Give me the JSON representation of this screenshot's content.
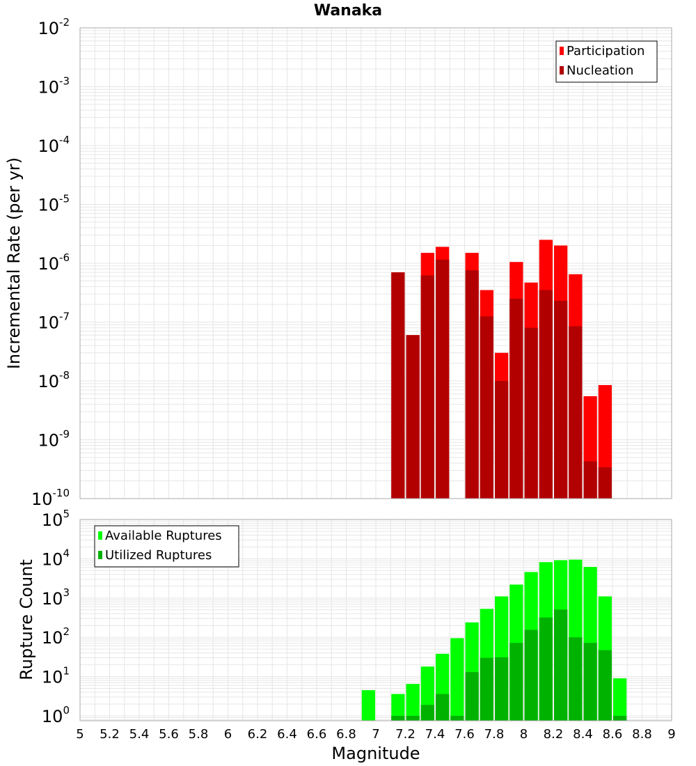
{
  "title": "Wanaka",
  "colors": {
    "participation": "#ff0000",
    "nucleation": "#b20000",
    "available": "#00ff00",
    "utilized": "#00b200",
    "grid": "#e6e6e6",
    "axis": "#aaaaaa"
  },
  "chart_data": [
    {
      "type": "bar",
      "panel": "top",
      "title": "Wanaka",
      "xlabel": "",
      "ylabel": "Incremental Rate (per yr)",
      "yscale": "log",
      "ylim": [
        1e-10,
        0.01
      ],
      "xlim": [
        5,
        9
      ],
      "grid": true,
      "legend_position": "top-right",
      "x": [
        7.15,
        7.25,
        7.35,
        7.45,
        7.55,
        7.65,
        7.75,
        7.85,
        7.95,
        8.05,
        8.15,
        8.25,
        8.35,
        8.45,
        8.55
      ],
      "series": [
        {
          "name": "Participation",
          "values": [
            7e-07,
            6e-08,
            1.5e-06,
            1.9e-06,
            null,
            1.5e-06,
            3.5e-07,
            3e-08,
            1.05e-06,
            4.7e-07,
            2.5e-06,
            2e-06,
            6.5e-07,
            5.5e-09,
            8.5e-09
          ]
        },
        {
          "name": "Nucleation",
          "values": [
            7e-07,
            6e-08,
            6.2e-07,
            1.15e-06,
            null,
            7.6e-07,
            1.25e-07,
            1e-08,
            2.5e-07,
            8e-08,
            3.5e-07,
            2.3e-07,
            8.5e-08,
            4.3e-10,
            3.4e-10
          ]
        }
      ]
    },
    {
      "type": "bar",
      "panel": "bottom",
      "xlabel": "Magnitude",
      "ylabel": "Rupture Count",
      "yscale": "log",
      "ylim": [
        0.75,
        100000.0
      ],
      "xlim": [
        5,
        9
      ],
      "grid": true,
      "legend_position": "top-left",
      "x": [
        6.95,
        7.05,
        7.15,
        7.25,
        7.35,
        7.45,
        7.55,
        7.65,
        7.75,
        7.85,
        7.95,
        8.05,
        8.15,
        8.25,
        8.35,
        8.45,
        8.55,
        8.65
      ],
      "series": [
        {
          "name": "Available Ruptures",
          "values": [
            4.5,
            null,
            3.6,
            6.5,
            18,
            38,
            95,
            240,
            530,
            1100,
            2200,
            4600,
            8200,
            9200,
            9500,
            6200,
            1100,
            9
          ]
        },
        {
          "name": "Utilized Ruptures",
          "values": [
            null,
            null,
            1,
            1,
            1.9,
            3.6,
            1,
            13,
            30,
            31,
            72,
            155,
            320,
            510,
            100,
            72,
            47,
            1
          ]
        }
      ]
    }
  ],
  "x_ticks": [
    "5",
    "5.2",
    "5.4",
    "5.6",
    "5.8",
    "6",
    "6.2",
    "6.4",
    "6.6",
    "6.8",
    "7",
    "7.2",
    "7.4",
    "7.6",
    "7.8",
    "8",
    "8.2",
    "8.4",
    "8.6",
    "8.8",
    "9"
  ],
  "top_y_ticks": [
    {
      "base": "10",
      "exp": "-2"
    },
    {
      "base": "10",
      "exp": "-3"
    },
    {
      "base": "10",
      "exp": "-4"
    },
    {
      "base": "10",
      "exp": "-5"
    },
    {
      "base": "10",
      "exp": "-6"
    },
    {
      "base": "10",
      "exp": "-7"
    },
    {
      "base": "10",
      "exp": "-8"
    },
    {
      "base": "10",
      "exp": "-9"
    },
    {
      "base": "10",
      "exp": "-10"
    }
  ],
  "bottom_y_ticks": [
    {
      "base": "10",
      "exp": "5"
    },
    {
      "base": "10",
      "exp": "4"
    },
    {
      "base": "10",
      "exp": "3"
    },
    {
      "base": "10",
      "exp": "2"
    },
    {
      "base": "10",
      "exp": "1"
    },
    {
      "base": "10",
      "exp": "0"
    }
  ]
}
